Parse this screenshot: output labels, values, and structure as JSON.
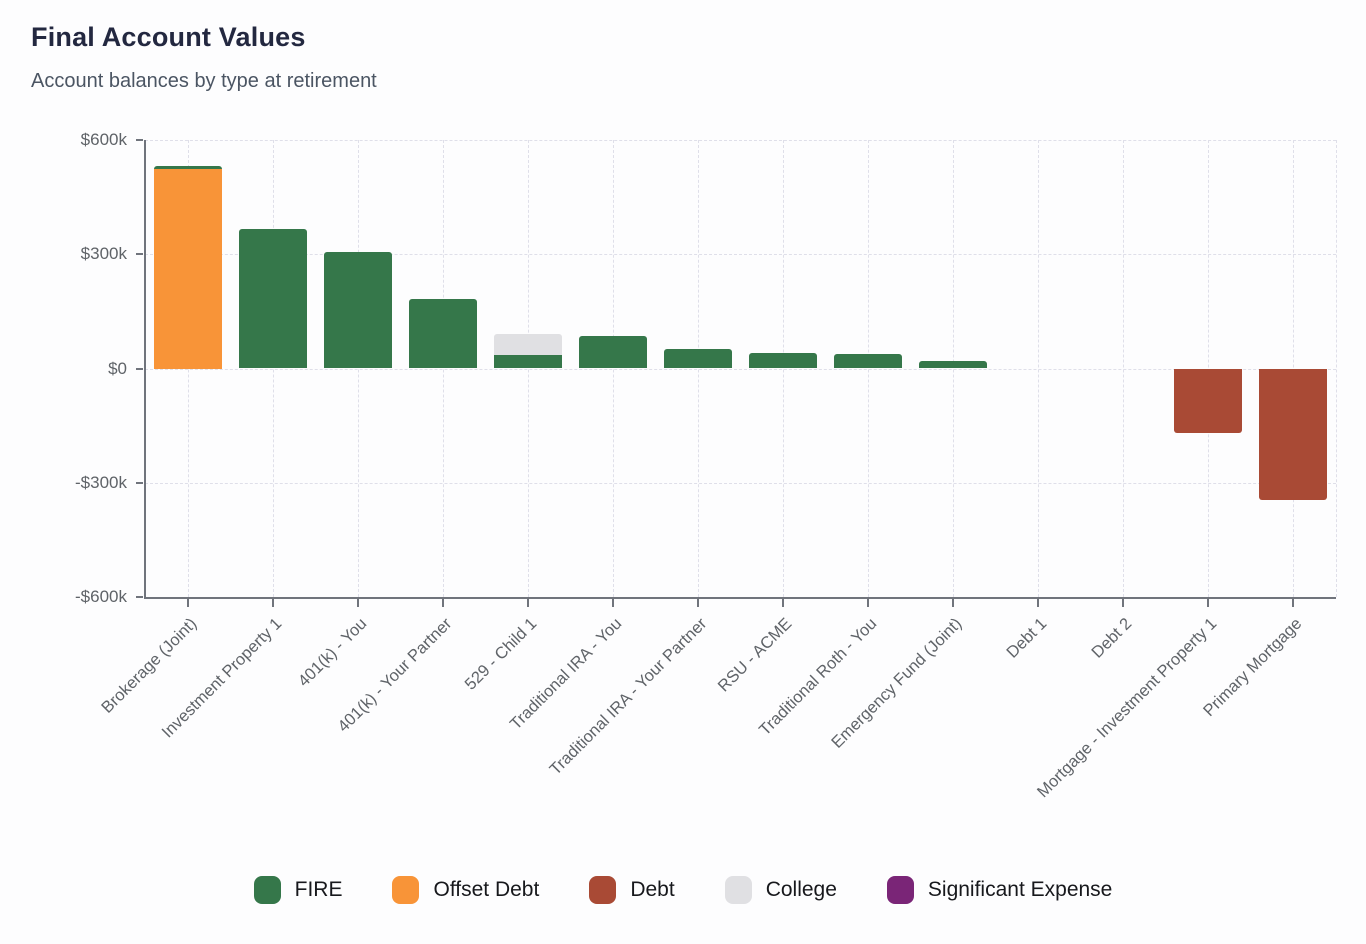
{
  "header": {
    "title": "Final Account Values",
    "subtitle": "Account balances by type at retirement"
  },
  "chart_data": {
    "type": "bar",
    "stacked": true,
    "title": "Final Account Values",
    "subtitle": "Account balances by type at retirement",
    "unit": "USD",
    "categories": [
      "Brokerage (Joint)",
      "Investment Property 1",
      "401(k) - You",
      "401(k) - Your Partner",
      "529 - Child 1",
      "Traditional IRA - You",
      "Traditional IRA - Your Partner",
      "RSU - ACME",
      "Traditional Roth - You",
      "Emergency Fund (Joint)",
      "Debt 1",
      "Debt 2",
      "Mortgage - Investment Property 1",
      "Primary Mortgage"
    ],
    "series": [
      {
        "name": "Offset Debt",
        "color": "#f89438",
        "values": [
          525000,
          0,
          0,
          0,
          0,
          0,
          0,
          0,
          0,
          0,
          0,
          0,
          0,
          0
        ]
      },
      {
        "name": "FIRE",
        "color": "#35774a",
        "values": [
          8000,
          365000,
          305000,
          183000,
          35000,
          85000,
          50000,
          42000,
          38000,
          19000,
          0,
          0,
          0,
          0
        ]
      },
      {
        "name": "College",
        "color": "#e0e0e3",
        "values": [
          0,
          0,
          0,
          0,
          55000,
          0,
          0,
          0,
          0,
          0,
          0,
          0,
          0,
          0
        ]
      },
      {
        "name": "Debt",
        "color": "#a94a35",
        "values": [
          0,
          0,
          0,
          0,
          0,
          0,
          0,
          0,
          0,
          0,
          0,
          0,
          -170000,
          -345000
        ]
      },
      {
        "name": "Significant Expense",
        "color": "#7a2577",
        "values": [
          0,
          0,
          0,
          0,
          0,
          0,
          0,
          0,
          0,
          0,
          0,
          0,
          0,
          0
        ]
      }
    ],
    "y_axis": {
      "ticks": [
        "$600k",
        "$300k",
        "$0",
        "-$300k",
        "-$600k"
      ],
      "tick_values": [
        600000,
        300000,
        0,
        -300000,
        -600000
      ],
      "ylim": [
        -600000,
        600000
      ],
      "grid": "dashed"
    },
    "x_axis": {
      "label_rotation": -45
    },
    "legend_position": "bottom"
  },
  "legend": {
    "items": [
      {
        "label": "FIRE",
        "color": "#35774a"
      },
      {
        "label": "Offset Debt",
        "color": "#f89438"
      },
      {
        "label": "Debt",
        "color": "#a94a35"
      },
      {
        "label": "College",
        "color": "#e0e0e3"
      },
      {
        "label": "Significant Expense",
        "color": "#7a2577"
      }
    ]
  }
}
